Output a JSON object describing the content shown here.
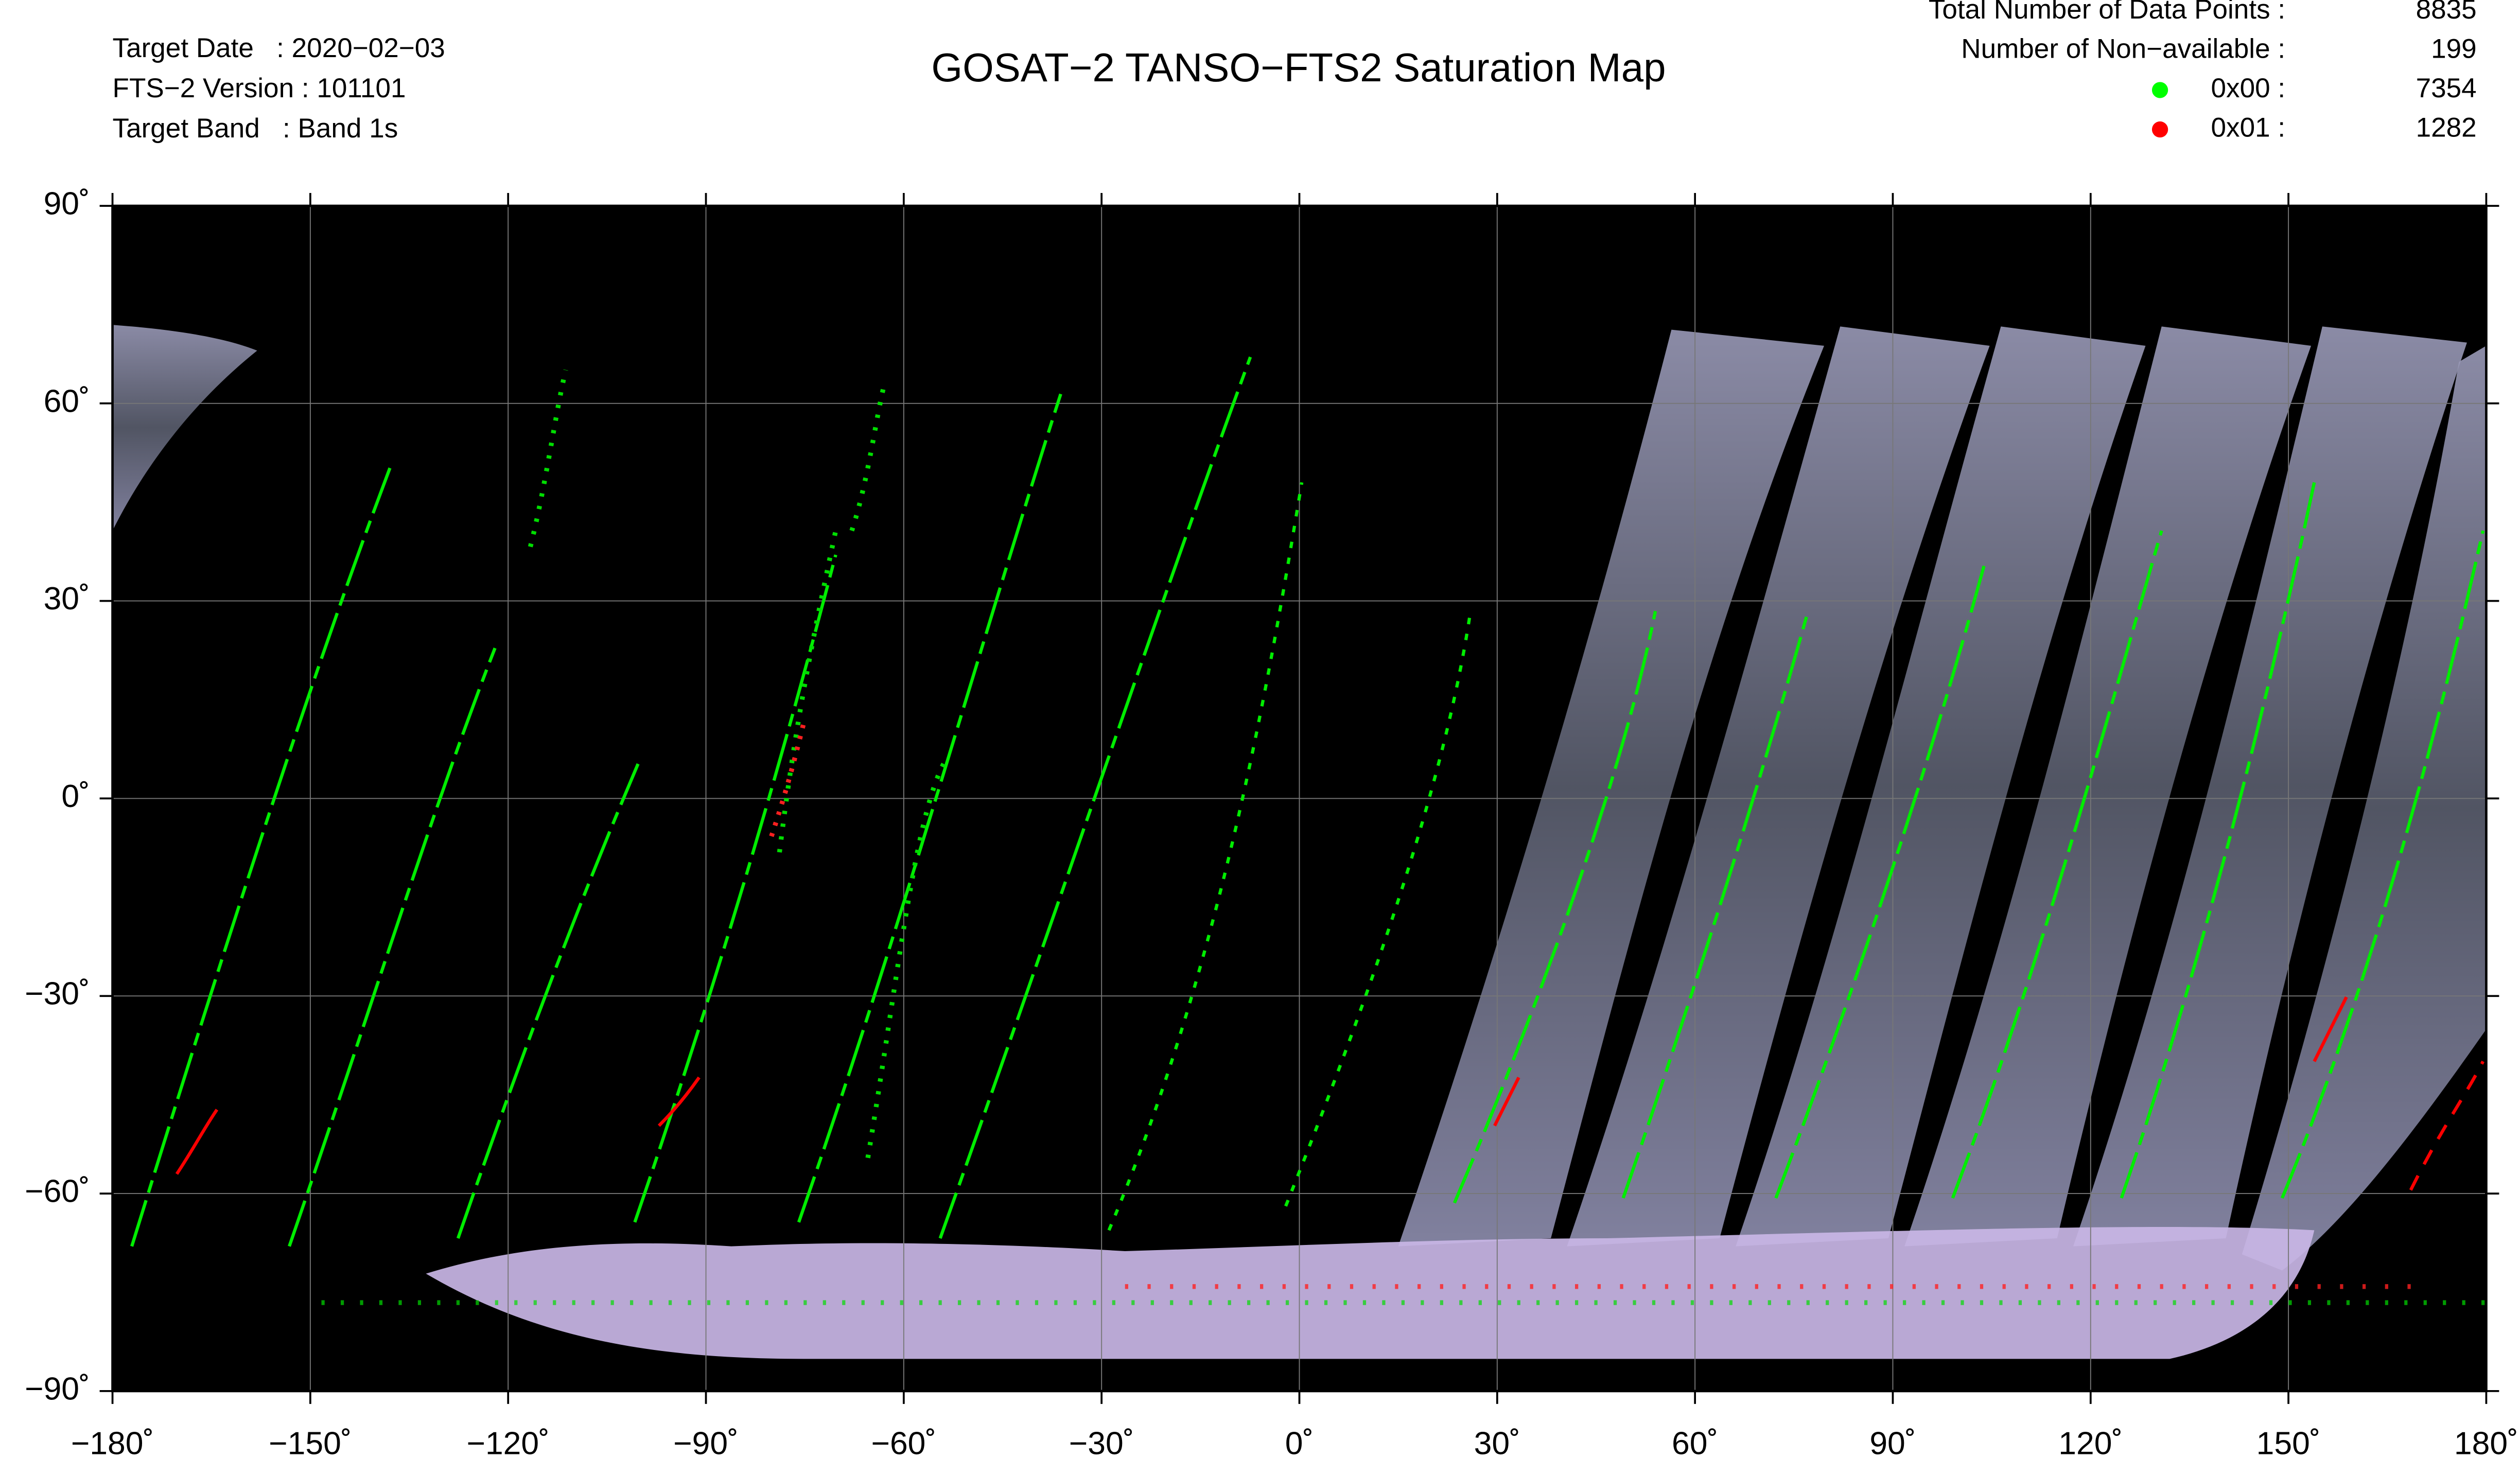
{
  "header": {
    "title": "GOSAT−2 TANSO−FTS2 Saturation Map",
    "info": [
      "Target Date   : 2020−02−03",
      "FTS−2 Version : 101101",
      "Target Band   : Band 1s"
    ],
    "stats": [
      {
        "label": "Total Number of Data Points :",
        "value": 8835
      },
      {
        "label": "Number of Non−available :",
        "value": 199
      },
      {
        "label": "0x00 :",
        "value": 7354,
        "color": "#00ff00"
      },
      {
        "label": "0x01 :",
        "value": 1282,
        "color": "#ff0000"
      }
    ]
  },
  "map": {
    "xlim": [
      -180,
      180
    ],
    "ylim": [
      -90,
      90
    ],
    "xticks": [
      {
        "value": -180,
        "label": "−180˚"
      },
      {
        "value": -150,
        "label": "−150˚"
      },
      {
        "value": -120,
        "label": "−120˚"
      },
      {
        "value": -90,
        "label": "−90˚"
      },
      {
        "value": -60,
        "label": "−60˚"
      },
      {
        "value": -30,
        "label": "−30˚"
      },
      {
        "value": 0,
        "label": "0˚"
      },
      {
        "value": 30,
        "label": "30˚"
      },
      {
        "value": 60,
        "label": "60˚"
      },
      {
        "value": 90,
        "label": "90˚"
      },
      {
        "value": 120,
        "label": "120˚"
      },
      {
        "value": 150,
        "label": "150˚"
      },
      {
        "value": 180,
        "label": "180˚"
      }
    ],
    "yticks": [
      {
        "value": -90,
        "label": "−90˚"
      },
      {
        "value": -60,
        "label": "−60˚"
      },
      {
        "value": -30,
        "label": "−30˚"
      },
      {
        "value": 0,
        "label": "0˚"
      },
      {
        "value": 30,
        "label": "30˚"
      },
      {
        "value": 60,
        "label": "60˚"
      },
      {
        "value": 90,
        "label": "90˚"
      }
    ]
  }
}
